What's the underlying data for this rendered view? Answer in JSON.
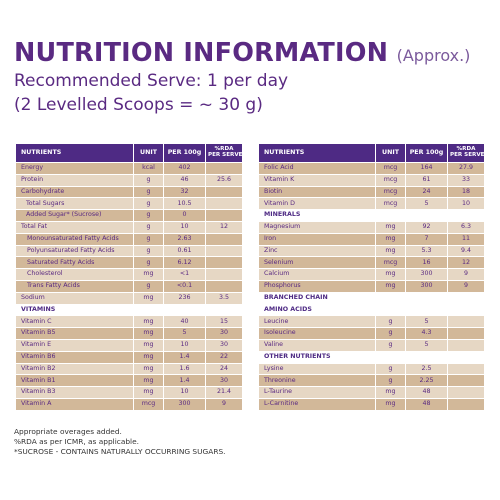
{
  "header": {
    "title": "NUTRITION INFORMATION",
    "approx": "(Approx.)",
    "serve": "Recommended Serve: 1 per day",
    "scoops": "(2 Levelled Scoops = ~ 30 g)"
  },
  "columns": {
    "nutrients": "NUTRIENTS",
    "unit": "UNIT",
    "per100": "PER 100g",
    "rda_top": "%RDA",
    "rda_bottom": "PER SERVE"
  },
  "left_rows": [
    {
      "name": "Energy",
      "unit": "kcal",
      "per100": "402",
      "rda": "",
      "style": "alt"
    },
    {
      "name": "Protein",
      "unit": "g",
      "per100": "46",
      "rda": "25.6",
      "style": "plain"
    },
    {
      "name": "Carbohydrate",
      "unit": "g",
      "per100": "32",
      "rda": "",
      "style": "alt"
    },
    {
      "name": "Total Sugars",
      "unit": "g",
      "per100": "10.5",
      "rda": "",
      "style": "plain",
      "indent": 1
    },
    {
      "name": "Added Sugar* (Sucrose)",
      "unit": "g",
      "per100": "0",
      "rda": "",
      "style": "alt",
      "indent": 1
    },
    {
      "name": "Total Fat",
      "unit": "g",
      "per100": "10",
      "rda": "12",
      "style": "plain"
    },
    {
      "name": "Monounsaturated Fatty Acids",
      "unit": "g",
      "per100": "2.63",
      "rda": "",
      "style": "alt",
      "indent": 2
    },
    {
      "name": "Polyunsaturated Fatty Acids",
      "unit": "g",
      "per100": "0.61",
      "rda": "",
      "style": "plain",
      "indent": 2
    },
    {
      "name": "Saturated Fatty Acids",
      "unit": "g",
      "per100": "6.12",
      "rda": "",
      "style": "alt",
      "indent": 2
    },
    {
      "name": "Cholesterol",
      "unit": "mg",
      "per100": "<1",
      "rda": "",
      "style": "plain",
      "indent": 2
    },
    {
      "name": "Trans Fatty Acids",
      "unit": "g",
      "per100": "<0.1",
      "rda": "",
      "style": "alt",
      "indent": 2
    },
    {
      "name": "Sodium",
      "unit": "mg",
      "per100": "236",
      "rda": "3.5",
      "style": "plain"
    },
    {
      "name": "VITAMINS",
      "unit": "",
      "per100": "",
      "rda": "",
      "style": "bold"
    },
    {
      "name": "Vitamin C",
      "unit": "mg",
      "per100": "40",
      "rda": "15",
      "style": "plain"
    },
    {
      "name": "Vitamin B5",
      "unit": "mg",
      "per100": "5",
      "rda": "30",
      "style": "alt"
    },
    {
      "name": "Vitamin E",
      "unit": "mg",
      "per100": "10",
      "rda": "30",
      "style": "plain"
    },
    {
      "name": "Vitamin B6",
      "unit": "mg",
      "per100": "1.4",
      "rda": "22",
      "style": "alt"
    },
    {
      "name": "Vitamin B2",
      "unit": "mg",
      "per100": "1.6",
      "rda": "24",
      "style": "plain"
    },
    {
      "name": "Vitamin B1",
      "unit": "mg",
      "per100": "1.4",
      "rda": "30",
      "style": "alt"
    },
    {
      "name": "Vitamin B3",
      "unit": "mg",
      "per100": "10",
      "rda": "21.4",
      "style": "plain"
    },
    {
      "name": "Vitamin A",
      "unit": "mcg",
      "per100": "300",
      "rda": "9",
      "style": "alt"
    }
  ],
  "right_rows": [
    {
      "name": "Folic Acid",
      "unit": "mcg",
      "per100": "164",
      "rda": "27.9",
      "style": "alt"
    },
    {
      "name": "Vitamin K",
      "unit": "mcg",
      "per100": "61",
      "rda": "33",
      "style": "plain"
    },
    {
      "name": "Biotin",
      "unit": "mcg",
      "per100": "24",
      "rda": "18",
      "style": "alt"
    },
    {
      "name": "Vitamin D",
      "unit": "mcg",
      "per100": "5",
      "rda": "10",
      "style": "plain"
    },
    {
      "name": "MINERALS",
      "unit": "",
      "per100": "",
      "rda": "",
      "style": "bold"
    },
    {
      "name": "Magnesium",
      "unit": "mg",
      "per100": "92",
      "rda": "6.3",
      "style": "plain"
    },
    {
      "name": "Iron",
      "unit": "mg",
      "per100": "7",
      "rda": "11",
      "style": "alt"
    },
    {
      "name": "Zinc",
      "unit": "mg",
      "per100": "5.3",
      "rda": "9.4",
      "style": "plain"
    },
    {
      "name": "Selenium",
      "unit": "mcg",
      "per100": "16",
      "rda": "12",
      "style": "alt"
    },
    {
      "name": "Calcium",
      "unit": "mg",
      "per100": "300",
      "rda": "9",
      "style": "plain"
    },
    {
      "name": "Phosphorus",
      "unit": "mg",
      "per100": "300",
      "rda": "9",
      "style": "alt"
    },
    {
      "name": "BRANCHED CHAIN",
      "unit": "",
      "per100": "",
      "rda": "",
      "style": "bold"
    },
    {
      "name": "AMINO ACIDS",
      "unit": "",
      "per100": "",
      "rda": "",
      "style": "bold"
    },
    {
      "name": "Leucine",
      "unit": "g",
      "per100": "5",
      "rda": "",
      "style": "plain"
    },
    {
      "name": "Isoleucine",
      "unit": "g",
      "per100": "4.3",
      "rda": "",
      "style": "alt"
    },
    {
      "name": "Valine",
      "unit": "g",
      "per100": "5",
      "rda": "",
      "style": "plain"
    },
    {
      "name": "OTHER NUTRIENTS",
      "unit": "",
      "per100": "",
      "rda": "",
      "style": "bold"
    },
    {
      "name": "Lysine",
      "unit": "g",
      "per100": "2.5",
      "rda": "",
      "style": "plain"
    },
    {
      "name": "Threonine",
      "unit": "g",
      "per100": "2.25",
      "rda": "",
      "style": "alt"
    },
    {
      "name": "L-Taurine",
      "unit": "mg",
      "per100": "48",
      "rda": "",
      "style": "plain"
    },
    {
      "name": "L-Carnitine",
      "unit": "mg",
      "per100": "48",
      "rda": "",
      "style": "alt"
    }
  ],
  "notes": [
    "Appropriate overages added.",
    "%RDA as per ICMR, as applicable.",
    "*SUCROSE - CONTAINS NATURALLY OCCURRING SUGARS."
  ],
  "colors": {
    "purple": "#4e2a84",
    "text_purple": "#5a2a82",
    "row_light": "#e6d7c4",
    "row_dark": "#d2b899"
  }
}
